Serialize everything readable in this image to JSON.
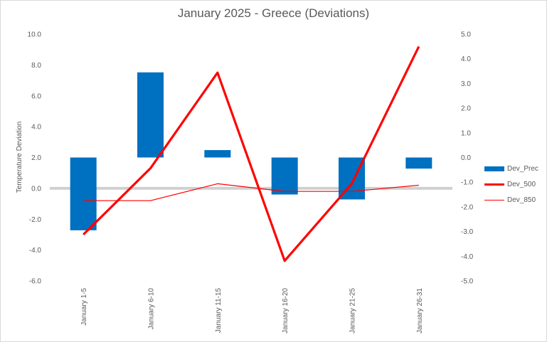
{
  "chart_data": {
    "type": "bar",
    "title": "January 2025 - Greece (Deviations)",
    "ylabel": "Temperature Deviation",
    "xlabel": "",
    "categories": [
      "January 1-5",
      "January 6-10",
      "January 11-15",
      "January 16-20",
      "January 21-25",
      "January 26-31"
    ],
    "ylim_left": [
      -6,
      10
    ],
    "yticks_left": [
      "10.0",
      "8.0",
      "6.0",
      "4.0",
      "2.0",
      "0.0",
      "-2.0",
      "-4.0",
      "-6.0"
    ],
    "ylim_right": [
      -5,
      5
    ],
    "yticks_right": [
      "5.0",
      "4.0",
      "3.0",
      "2.0",
      "1.0",
      "0.0",
      "-1.0",
      "-2.0",
      "-3.0",
      "-4.0",
      "-5.0"
    ],
    "series": [
      {
        "name": "Dev_Prec",
        "type": "bar",
        "axis": "right",
        "color": "#0070c0",
        "values": [
          -2.95,
          3.45,
          0.3,
          -1.5,
          -1.7,
          -0.45
        ]
      },
      {
        "name": "Dev_500",
        "type": "line",
        "axis": "left",
        "color": "#ff0000",
        "line_weight": "thick",
        "values": [
          -3.0,
          1.3,
          7.5,
          -4.7,
          0.3,
          9.2
        ]
      },
      {
        "name": "Dev_850",
        "type": "line",
        "axis": "left",
        "color": "#ff0000",
        "line_weight": "thin",
        "values": [
          -0.8,
          -0.8,
          0.3,
          -0.2,
          -0.2,
          0.2
        ]
      }
    ],
    "zero_line_color": "#d0d0d0",
    "grid": false,
    "legend_position": "right"
  }
}
